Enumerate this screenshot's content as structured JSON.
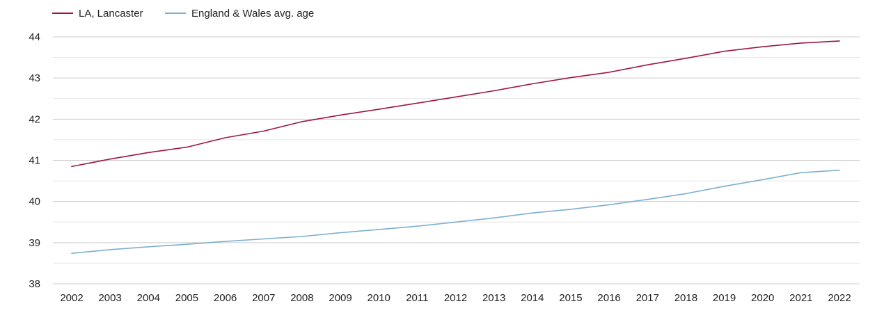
{
  "chart_data": {
    "type": "line",
    "x": [
      "2002",
      "2003",
      "2004",
      "2005",
      "2006",
      "2007",
      "2008",
      "2009",
      "2010",
      "2011",
      "2012",
      "2013",
      "2014",
      "2015",
      "2016",
      "2017",
      "2018",
      "2019",
      "2020",
      "2021",
      "2022"
    ],
    "ylim": [
      38,
      44
    ],
    "yticks": [
      "38",
      "39",
      "40",
      "41",
      "42",
      "43",
      "44"
    ],
    "grid": true,
    "legend_position": "top-left",
    "series": [
      {
        "name": "LA, Lancaster",
        "color": "#a0153e",
        "values": [
          40.85,
          41.03,
          41.19,
          41.32,
          41.55,
          41.71,
          41.94,
          42.1,
          42.24,
          42.39,
          42.54,
          42.69,
          42.86,
          43.01,
          43.14,
          43.32,
          43.48,
          43.65,
          43.76,
          43.85,
          43.9
        ]
      },
      {
        "name": "England & Wales avg. age",
        "color": "#7bafd0",
        "values": [
          38.74,
          38.83,
          38.9,
          38.96,
          39.03,
          39.09,
          39.15,
          39.24,
          39.32,
          39.4,
          39.5,
          39.6,
          39.72,
          39.81,
          39.92,
          40.05,
          40.19,
          40.37,
          40.53,
          40.7,
          40.76
        ]
      }
    ]
  }
}
